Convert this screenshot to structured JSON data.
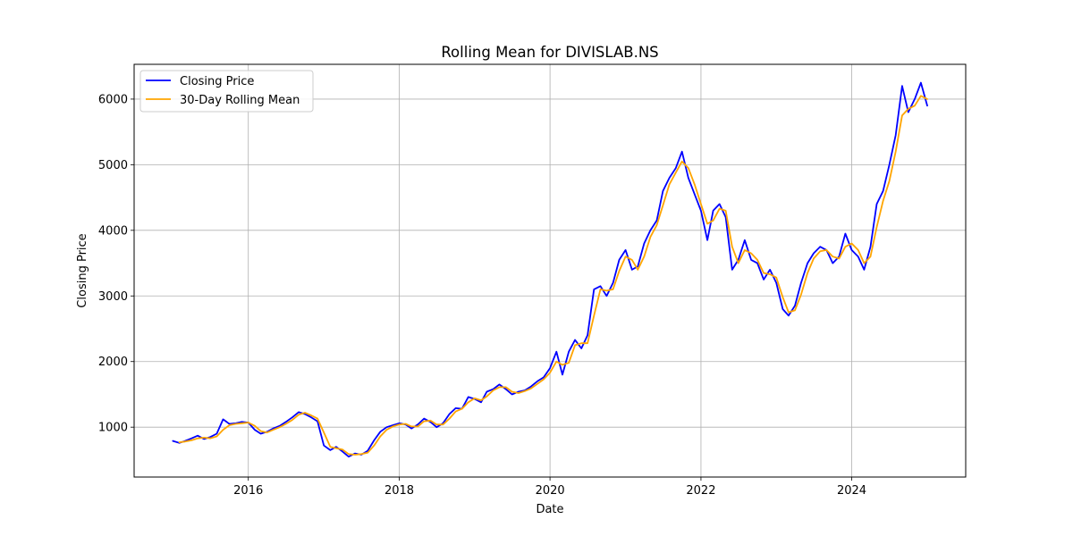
{
  "chart_data": {
    "type": "line",
    "title": "Rolling Mean for DIVISLAB.NS",
    "xlabel": "Date",
    "ylabel": "Closing Price",
    "x_ticks": [
      "2016",
      "2018",
      "2020",
      "2022",
      "2024"
    ],
    "y_ticks": [
      "1000",
      "2000",
      "3000",
      "4000",
      "5000",
      "6000"
    ],
    "xlim": [
      "2014-06-27",
      "2025-07-06"
    ],
    "ylim": [
      240,
      6530
    ],
    "grid": true,
    "legend": "upper left",
    "series": [
      {
        "name": "Closing Price",
        "color": "#0000ff",
        "points": [
          [
            "2015-01-01",
            790
          ],
          [
            "2015-02-01",
            760
          ],
          [
            "2015-03-01",
            790
          ],
          [
            "2015-04-01",
            830
          ],
          [
            "2015-05-01",
            870
          ],
          [
            "2015-06-01",
            820
          ],
          [
            "2015-07-01",
            850
          ],
          [
            "2015-08-01",
            900
          ],
          [
            "2015-09-01",
            1120
          ],
          [
            "2015-10-01",
            1050
          ],
          [
            "2015-11-01",
            1060
          ],
          [
            "2015-12-01",
            1080
          ],
          [
            "2016-01-01",
            1070
          ],
          [
            "2016-02-01",
            960
          ],
          [
            "2016-03-01",
            900
          ],
          [
            "2016-04-01",
            930
          ],
          [
            "2016-05-01",
            980
          ],
          [
            "2016-06-01",
            1020
          ],
          [
            "2016-07-01",
            1080
          ],
          [
            "2016-08-01",
            1150
          ],
          [
            "2016-09-01",
            1230
          ],
          [
            "2016-10-01",
            1200
          ],
          [
            "2016-11-01",
            1150
          ],
          [
            "2016-12-01",
            1090
          ],
          [
            "2017-01-01",
            720
          ],
          [
            "2017-02-01",
            650
          ],
          [
            "2017-03-01",
            700
          ],
          [
            "2017-04-01",
            630
          ],
          [
            "2017-05-01",
            550
          ],
          [
            "2017-06-01",
            600
          ],
          [
            "2017-07-01",
            580
          ],
          [
            "2017-08-01",
            640
          ],
          [
            "2017-09-01",
            800
          ],
          [
            "2017-10-01",
            930
          ],
          [
            "2017-11-01",
            1000
          ],
          [
            "2017-12-01",
            1030
          ],
          [
            "2018-01-01",
            1060
          ],
          [
            "2018-02-01",
            1040
          ],
          [
            "2018-03-01",
            980
          ],
          [
            "2018-04-01",
            1040
          ],
          [
            "2018-05-01",
            1130
          ],
          [
            "2018-06-01",
            1080
          ],
          [
            "2018-07-01",
            1000
          ],
          [
            "2018-08-01",
            1060
          ],
          [
            "2018-09-01",
            1200
          ],
          [
            "2018-10-01",
            1290
          ],
          [
            "2018-11-01",
            1280
          ],
          [
            "2018-12-01",
            1460
          ],
          [
            "2019-01-01",
            1430
          ],
          [
            "2019-02-01",
            1380
          ],
          [
            "2019-03-01",
            1540
          ],
          [
            "2019-04-01",
            1580
          ],
          [
            "2019-05-01",
            1650
          ],
          [
            "2019-06-01",
            1580
          ],
          [
            "2019-07-01",
            1500
          ],
          [
            "2019-08-01",
            1540
          ],
          [
            "2019-09-01",
            1560
          ],
          [
            "2019-10-01",
            1620
          ],
          [
            "2019-11-01",
            1700
          ],
          [
            "2019-12-01",
            1760
          ],
          [
            "2020-01-01",
            1900
          ],
          [
            "2020-02-01",
            2150
          ],
          [
            "2020-03-01",
            1800
          ],
          [
            "2020-04-01",
            2150
          ],
          [
            "2020-05-01",
            2330
          ],
          [
            "2020-06-01",
            2200
          ],
          [
            "2020-07-01",
            2400
          ],
          [
            "2020-08-01",
            3100
          ],
          [
            "2020-09-01",
            3150
          ],
          [
            "2020-10-01",
            3000
          ],
          [
            "2020-11-01",
            3200
          ],
          [
            "2020-12-01",
            3550
          ],
          [
            "2021-01-01",
            3700
          ],
          [
            "2021-02-01",
            3400
          ],
          [
            "2021-03-01",
            3450
          ],
          [
            "2021-04-01",
            3800
          ],
          [
            "2021-05-01",
            4000
          ],
          [
            "2021-06-01",
            4150
          ],
          [
            "2021-07-01",
            4600
          ],
          [
            "2021-08-01",
            4800
          ],
          [
            "2021-09-01",
            4950
          ],
          [
            "2021-10-01",
            5200
          ],
          [
            "2021-11-01",
            4800
          ],
          [
            "2021-12-01",
            4550
          ],
          [
            "2022-01-01",
            4300
          ],
          [
            "2022-02-01",
            3850
          ],
          [
            "2022-03-01",
            4300
          ],
          [
            "2022-04-01",
            4400
          ],
          [
            "2022-05-01",
            4200
          ],
          [
            "2022-06-01",
            3400
          ],
          [
            "2022-07-01",
            3550
          ],
          [
            "2022-08-01",
            3850
          ],
          [
            "2022-09-01",
            3550
          ],
          [
            "2022-10-01",
            3500
          ],
          [
            "2022-11-01",
            3250
          ],
          [
            "2022-12-01",
            3400
          ],
          [
            "2023-01-01",
            3200
          ],
          [
            "2023-02-01",
            2800
          ],
          [
            "2023-03-01",
            2700
          ],
          [
            "2023-04-01",
            2850
          ],
          [
            "2023-05-01",
            3200
          ],
          [
            "2023-06-01",
            3500
          ],
          [
            "2023-07-01",
            3650
          ],
          [
            "2023-08-01",
            3750
          ],
          [
            "2023-09-01",
            3700
          ],
          [
            "2023-10-01",
            3500
          ],
          [
            "2023-11-01",
            3600
          ],
          [
            "2023-12-01",
            3950
          ],
          [
            "2024-01-01",
            3700
          ],
          [
            "2024-02-01",
            3600
          ],
          [
            "2024-03-01",
            3400
          ],
          [
            "2024-04-01",
            3750
          ],
          [
            "2024-05-01",
            4400
          ],
          [
            "2024-06-01",
            4600
          ],
          [
            "2024-07-01",
            5000
          ],
          [
            "2024-08-01",
            5450
          ],
          [
            "2024-09-01",
            6200
          ],
          [
            "2024-10-01",
            5800
          ],
          [
            "2024-11-01",
            6000
          ],
          [
            "2024-12-01",
            6250
          ],
          [
            "2025-01-01",
            5900
          ]
        ]
      },
      {
        "name": "30-Day Rolling Mean",
        "color": "#ffa500",
        "points": [
          [
            "2015-02-01",
            770
          ],
          [
            "2015-03-01",
            780
          ],
          [
            "2015-04-01",
            800
          ],
          [
            "2015-05-01",
            830
          ],
          [
            "2015-06-01",
            840
          ],
          [
            "2015-07-01",
            830
          ],
          [
            "2015-08-01",
            860
          ],
          [
            "2015-09-01",
            960
          ],
          [
            "2015-10-01",
            1030
          ],
          [
            "2015-11-01",
            1050
          ],
          [
            "2015-12-01",
            1060
          ],
          [
            "2016-01-01",
            1070
          ],
          [
            "2016-02-01",
            1020
          ],
          [
            "2016-03-01",
            940
          ],
          [
            "2016-04-01",
            920
          ],
          [
            "2016-05-01",
            960
          ],
          [
            "2016-06-01",
            1000
          ],
          [
            "2016-07-01",
            1050
          ],
          [
            "2016-08-01",
            1110
          ],
          [
            "2016-09-01",
            1190
          ],
          [
            "2016-10-01",
            1220
          ],
          [
            "2016-11-01",
            1180
          ],
          [
            "2016-12-01",
            1130
          ],
          [
            "2017-01-01",
            920
          ],
          [
            "2017-02-01",
            700
          ],
          [
            "2017-03-01",
            680
          ],
          [
            "2017-04-01",
            660
          ],
          [
            "2017-05-01",
            590
          ],
          [
            "2017-06-01",
            580
          ],
          [
            "2017-07-01",
            590
          ],
          [
            "2017-08-01",
            610
          ],
          [
            "2017-09-01",
            720
          ],
          [
            "2017-10-01",
            860
          ],
          [
            "2017-11-01",
            960
          ],
          [
            "2017-12-01",
            1010
          ],
          [
            "2018-01-01",
            1040
          ],
          [
            "2018-02-01",
            1050
          ],
          [
            "2018-03-01",
            1010
          ],
          [
            "2018-04-01",
            1010
          ],
          [
            "2018-05-01",
            1090
          ],
          [
            "2018-06-01",
            1100
          ],
          [
            "2018-07-01",
            1040
          ],
          [
            "2018-08-01",
            1040
          ],
          [
            "2018-09-01",
            1130
          ],
          [
            "2018-10-01",
            1240
          ],
          [
            "2018-11-01",
            1280
          ],
          [
            "2018-12-01",
            1380
          ],
          [
            "2019-01-01",
            1440
          ],
          [
            "2019-02-01",
            1410
          ],
          [
            "2019-03-01",
            1470
          ],
          [
            "2019-04-01",
            1560
          ],
          [
            "2019-05-01",
            1610
          ],
          [
            "2019-06-01",
            1610
          ],
          [
            "2019-07-01",
            1540
          ],
          [
            "2019-08-01",
            1520
          ],
          [
            "2019-09-01",
            1550
          ],
          [
            "2019-10-01",
            1590
          ],
          [
            "2019-11-01",
            1660
          ],
          [
            "2019-12-01",
            1730
          ],
          [
            "2020-01-01",
            1830
          ],
          [
            "2020-02-01",
            2000
          ],
          [
            "2020-03-01",
            1950
          ],
          [
            "2020-04-01",
            1980
          ],
          [
            "2020-05-01",
            2250
          ],
          [
            "2020-06-01",
            2280
          ],
          [
            "2020-07-01",
            2280
          ],
          [
            "2020-08-01",
            2700
          ],
          [
            "2020-09-01",
            3100
          ],
          [
            "2020-10-01",
            3080
          ],
          [
            "2020-11-01",
            3100
          ],
          [
            "2020-12-01",
            3380
          ],
          [
            "2021-01-01",
            3600
          ],
          [
            "2021-02-01",
            3550
          ],
          [
            "2021-03-01",
            3400
          ],
          [
            "2021-04-01",
            3600
          ],
          [
            "2021-05-01",
            3900
          ],
          [
            "2021-06-01",
            4080
          ],
          [
            "2021-07-01",
            4380
          ],
          [
            "2021-08-01",
            4700
          ],
          [
            "2021-09-01",
            4880
          ],
          [
            "2021-10-01",
            5050
          ],
          [
            "2021-11-01",
            4950
          ],
          [
            "2021-12-01",
            4700
          ],
          [
            "2022-01-01",
            4400
          ],
          [
            "2022-02-01",
            4100
          ],
          [
            "2022-03-01",
            4150
          ],
          [
            "2022-04-01",
            4330
          ],
          [
            "2022-05-01",
            4300
          ],
          [
            "2022-06-01",
            3750
          ],
          [
            "2022-07-01",
            3500
          ],
          [
            "2022-08-01",
            3700
          ],
          [
            "2022-09-01",
            3650
          ],
          [
            "2022-10-01",
            3550
          ],
          [
            "2022-11-01",
            3350
          ],
          [
            "2022-12-01",
            3330
          ],
          [
            "2023-01-01",
            3280
          ],
          [
            "2023-02-01",
            2980
          ],
          [
            "2023-03-01",
            2750
          ],
          [
            "2023-04-01",
            2780
          ],
          [
            "2023-05-01",
            3020
          ],
          [
            "2023-06-01",
            3350
          ],
          [
            "2023-07-01",
            3570
          ],
          [
            "2023-08-01",
            3680
          ],
          [
            "2023-09-01",
            3700
          ],
          [
            "2023-10-01",
            3600
          ],
          [
            "2023-11-01",
            3570
          ],
          [
            "2023-12-01",
            3750
          ],
          [
            "2024-01-01",
            3800
          ],
          [
            "2024-02-01",
            3700
          ],
          [
            "2024-03-01",
            3500
          ],
          [
            "2024-04-01",
            3600
          ],
          [
            "2024-05-01",
            4050
          ],
          [
            "2024-06-01",
            4450
          ],
          [
            "2024-07-01",
            4750
          ],
          [
            "2024-08-01",
            5200
          ],
          [
            "2024-09-01",
            5750
          ],
          [
            "2024-10-01",
            5850
          ],
          [
            "2024-11-01",
            5900
          ],
          [
            "2024-12-01",
            6050
          ],
          [
            "2025-01-01",
            6000
          ]
        ]
      }
    ]
  }
}
